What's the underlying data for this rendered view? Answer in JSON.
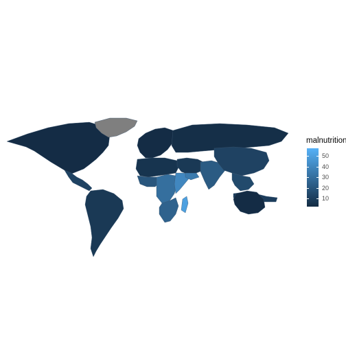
{
  "legend": {
    "title": "malnutrition",
    "scale": {
      "min": 2.5,
      "max": 57,
      "low_color": "#132b43",
      "high_color": "#56b1f7"
    },
    "ticks": [
      {
        "label": "50",
        "value": 50
      },
      {
        "label": "40",
        "value": 40
      },
      {
        "label": "30",
        "value": 30
      },
      {
        "label": "20",
        "value": 20
      },
      {
        "label": "10",
        "value": 10
      }
    ]
  },
  "colors": {
    "background": "#ffffff",
    "missing": "#7f7f7f",
    "country_border": "#3b5670"
  },
  "regions": [
    {
      "name": "North America",
      "malnutrition": 3
    },
    {
      "name": "Central America",
      "malnutrition": 12
    },
    {
      "name": "South America",
      "malnutrition": 8
    },
    {
      "name": "Greenland",
      "malnutrition": null
    },
    {
      "name": "Europe",
      "malnutrition": 3
    },
    {
      "name": "Russia",
      "malnutrition": 4
    },
    {
      "name": "North Africa",
      "malnutrition": 6
    },
    {
      "name": "West Africa",
      "malnutrition": 20
    },
    {
      "name": "Central Africa",
      "malnutrition": 30
    },
    {
      "name": "Horn of Africa",
      "malnutrition": 40
    },
    {
      "name": "Southern Africa",
      "malnutrition": 25
    },
    {
      "name": "Madagascar",
      "malnutrition": 50
    },
    {
      "name": "Middle East",
      "malnutrition": 8
    },
    {
      "name": "Yemen",
      "malnutrition": 35
    },
    {
      "name": "South Asia",
      "malnutrition": 22
    },
    {
      "name": "China",
      "malnutrition": 12
    },
    {
      "name": "Southeast Asia",
      "malnutrition": 15
    },
    {
      "name": "Indonesia",
      "malnutrition": 10
    },
    {
      "name": "Australia",
      "malnutrition": 3
    }
  ]
}
